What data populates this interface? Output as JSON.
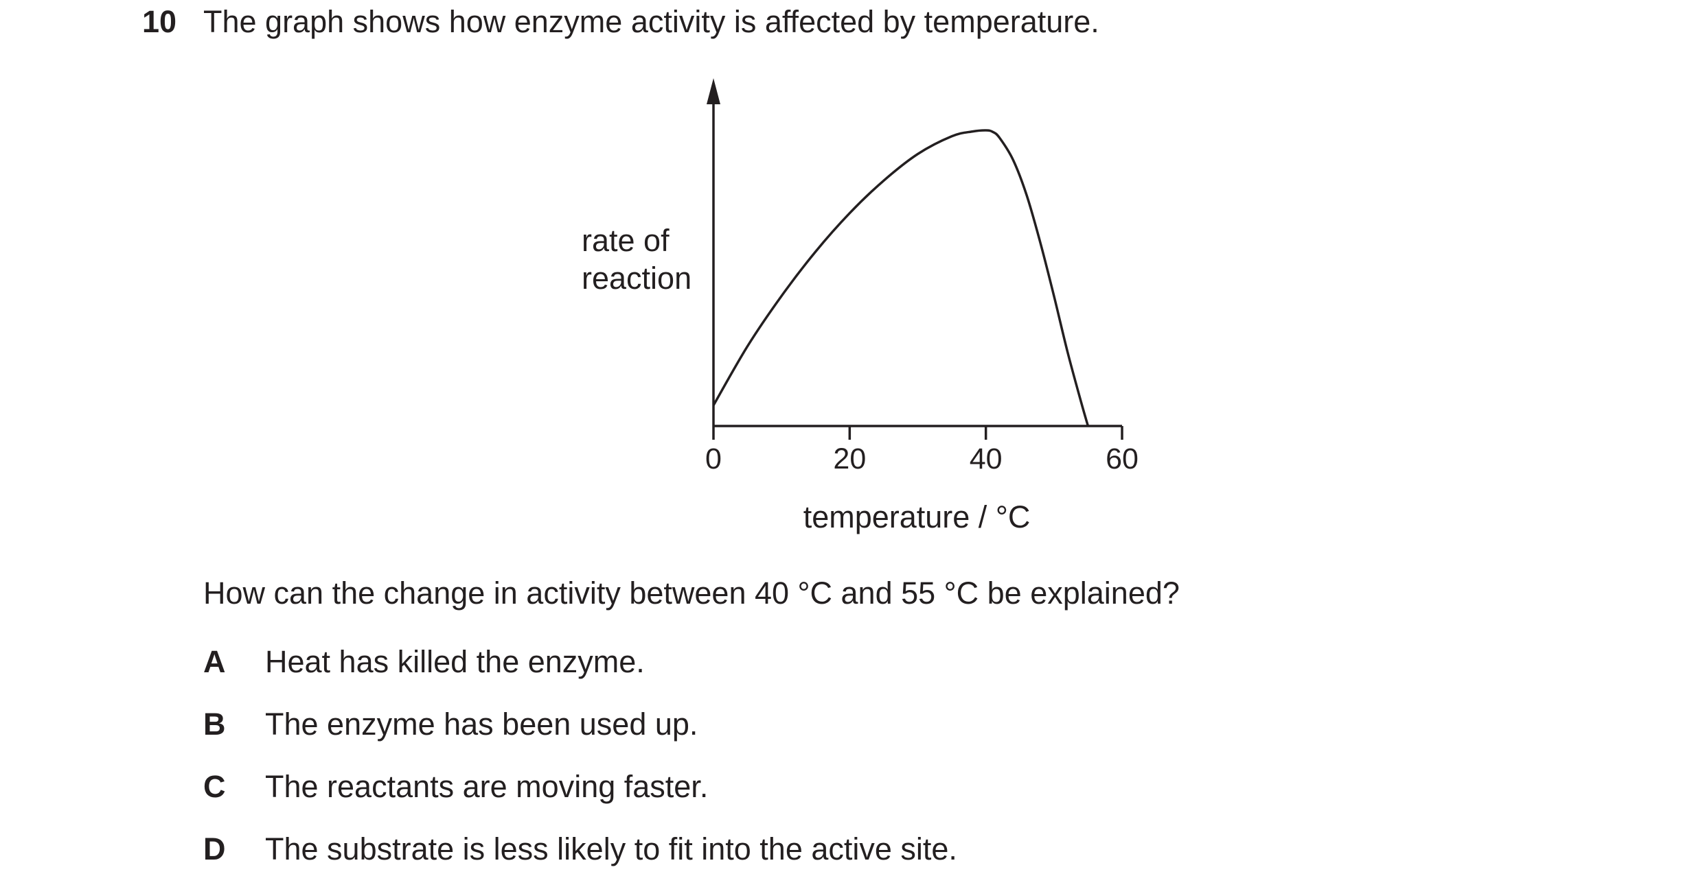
{
  "question": {
    "number": "10",
    "stem": "The graph shows how enzyme activity is affected by temperature.",
    "sub_question": "How can the change in activity between 40 °C and 55 °C be explained?",
    "options": [
      {
        "letter": "A",
        "text": "Heat has killed the enzyme."
      },
      {
        "letter": "B",
        "text": "The enzyme has been used up."
      },
      {
        "letter": "C",
        "text": "The reactants are moving faster."
      },
      {
        "letter": "D",
        "text": "The substrate is less likely to fit into the active site."
      }
    ]
  },
  "chart_data": {
    "type": "line",
    "xlabel": "temperature / °C",
    "ylabel_lines": [
      "rate of",
      "reaction"
    ],
    "x_ticks": [
      0,
      20,
      40,
      60
    ],
    "xlim": [
      0,
      60
    ],
    "ylim": [
      0,
      1.12
    ],
    "grid": false,
    "y_axis_has_arrow": true,
    "line_color": "#231f20",
    "series": [
      {
        "x": [
          0,
          5,
          10,
          15,
          20,
          25,
          30,
          35,
          38,
          40,
          41,
          42,
          44,
          46,
          48,
          50,
          52,
          54,
          55
        ],
        "y": [
          0.07,
          0.27,
          0.44,
          0.59,
          0.72,
          0.83,
          0.92,
          0.98,
          0.996,
          1.0,
          0.995,
          0.975,
          0.9,
          0.78,
          0.62,
          0.44,
          0.25,
          0.08,
          0.0
        ]
      }
    ]
  }
}
